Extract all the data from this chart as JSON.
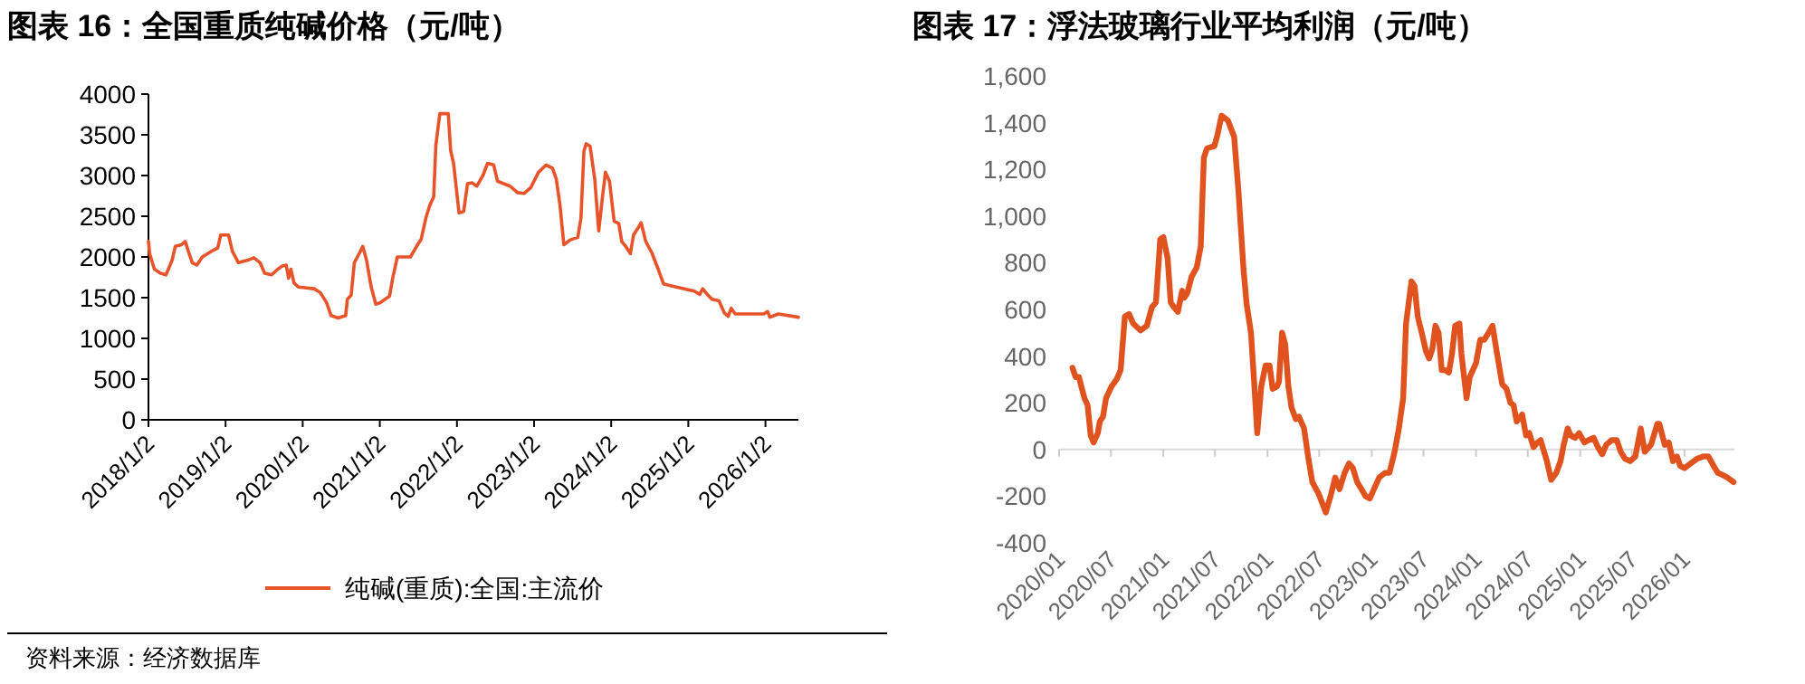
{
  "chart_data": [
    {
      "type": "line",
      "title": "图表 16：全国重质纯碱价格（元/吨）",
      "x": [
        "2018-01-02",
        "2018-01-08",
        "2018-01-30",
        "2018-02-28",
        "2018-03-26",
        "2018-04-24",
        "2018-05-09",
        "2018-06-07",
        "2018-06-25",
        "2018-07-10",
        "2018-07-28",
        "2018-08-19",
        "2018-09-14",
        "2018-10-27",
        "2018-11-26",
        "2018-12-10",
        "2019-01-16",
        "2019-02-03",
        "2019-03-04",
        "2019-04-17",
        "2019-05-16",
        "2019-06-14",
        "2019-07-06",
        "2019-08-08",
        "2019-09-06",
        "2019-09-28",
        "2019-10-16",
        "2019-10-27",
        "2019-11-07",
        "2019-11-22",
        "2019-12-14",
        "2020-02-25",
        "2020-03-26",
        "2020-04-24",
        "2020-05-16",
        "2020-06-18",
        "2020-07-24",
        "2020-08-01",
        "2020-08-19",
        "2020-09-03",
        "2020-09-28",
        "2020-10-13",
        "2020-10-31",
        "2020-11-22",
        "2020-12-14",
        "2021-01-05",
        "2021-02-17",
        "2021-03-04",
        "2021-03-26",
        "2021-05-27",
        "2021-06-25",
        "2021-07-17",
        "2021-08-08",
        "2021-08-26",
        "2021-09-14",
        "2021-09-24",
        "2021-10-13",
        "2021-11-22",
        "2021-12-03",
        "2021-12-17",
        "2022-01-12",
        "2022-02-03",
        "2022-02-21",
        "2022-03-15",
        "2022-04-06",
        "2022-05-05",
        "2022-05-27",
        "2022-06-25",
        "2022-07-13",
        "2022-09-10",
        "2022-10-16",
        "2022-11-15",
        "2022-12-17",
        "2023-01-23",
        "2023-02-28",
        "2023-03-30",
        "2023-04-17",
        "2023-05-05",
        "2023-05-23",
        "2023-06-22",
        "2023-07-28",
        "2023-08-12",
        "2023-08-26",
        "2023-09-06",
        "2023-09-24",
        "2023-10-16",
        "2023-11-04",
        "2023-11-22",
        "2023-12-06",
        "2023-12-25",
        "2024-01-16",
        "2024-02-07",
        "2024-02-21",
        "2024-03-11",
        "2024-04-02",
        "2024-04-17",
        "2024-05-12",
        "2024-05-23",
        "2024-06-14",
        "2024-07-13",
        "2024-08-12",
        "2024-09-06",
        "2024-10-05",
        "2025-01-30",
        "2025-02-25",
        "2025-03-11",
        "2025-04-02",
        "2025-04-24",
        "2025-05-27",
        "2025-06-22",
        "2025-07-10",
        "2025-07-24",
        "2025-08-12",
        "2025-09-14",
        "2025-12-25",
        "2026-01-12",
        "2026-01-23",
        "2026-03-04",
        "2026-06-07"
      ],
      "series": [
        {
          "name": "纯碱(重质):全国:主流价",
          "color": "#e8532a",
          "values": [
            2190,
            2040,
            1850,
            1800,
            1780,
            1960,
            2130,
            2150,
            2190,
            2070,
            1930,
            1900,
            2000,
            2070,
            2110,
            2270,
            2270,
            2070,
            1930,
            1960,
            1990,
            1930,
            1800,
            1780,
            1850,
            1890,
            1900,
            1740,
            1850,
            1680,
            1630,
            1610,
            1560,
            1440,
            1280,
            1250,
            1280,
            1480,
            1530,
            1930,
            2050,
            2130,
            1960,
            1630,
            1420,
            1440,
            1520,
            1740,
            2000,
            2000,
            2130,
            2220,
            2480,
            2630,
            2740,
            3370,
            3760,
            3760,
            3310,
            3150,
            2540,
            2560,
            2900,
            2910,
            2870,
            3000,
            3150,
            3130,
            2930,
            2870,
            2790,
            2780,
            2850,
            3040,
            3130,
            3090,
            2960,
            2630,
            2150,
            2210,
            2240,
            2480,
            3300,
            3390,
            3360,
            2960,
            2320,
            2740,
            3040,
            2930,
            2440,
            2410,
            2190,
            2130,
            2040,
            2270,
            2370,
            2420,
            2190,
            2050,
            1850,
            1670,
            1650,
            1580,
            1540,
            1610,
            1540,
            1480,
            1460,
            1310,
            1270,
            1370,
            1300,
            1300,
            1300,
            1330,
            1260,
            1300,
            1260
          ]
        }
      ],
      "xlim": [
        "2018-01-02",
        "2026-06-07"
      ],
      "xticks": [
        {
          "value": "2018-01-02",
          "label": "2018/1/2"
        },
        {
          "value": "2019-01-02",
          "label": "2019/1/2"
        },
        {
          "value": "2020-01-02",
          "label": "2020/1/2"
        },
        {
          "value": "2021-01-02",
          "label": "2021/1/2"
        },
        {
          "value": "2022-01-02",
          "label": "2022/1/2"
        },
        {
          "value": "2023-01-02",
          "label": "2023/1/2"
        },
        {
          "value": "2024-01-02",
          "label": "2024/1/2"
        },
        {
          "value": "2025-01-02",
          "label": "2025/1/2"
        },
        {
          "value": "2026-01-02",
          "label": "2026/1/2"
        }
      ],
      "ylim": [
        0,
        4000
      ],
      "yticks": [
        0,
        500,
        1000,
        1500,
        2000,
        2500,
        3000,
        3500,
        4000
      ],
      "legend": "bottom",
      "grid": false,
      "annotations": [
        "资料来源：经济数据库"
      ]
    },
    {
      "type": "line",
      "title": "图表 17：浮法玻璃行业平均利润（元/吨）",
      "x": [
        "2020-02-17",
        "2020-02-28",
        "2020-03-11",
        "2020-03-19",
        "2020-03-30",
        "2020-04-10",
        "2020-04-21",
        "2020-05-01",
        "2020-05-16",
        "2020-05-23",
        "2020-06-03",
        "2020-06-14",
        "2020-07-03",
        "2020-07-21",
        "2020-08-04",
        "2020-08-19",
        "2020-09-03",
        "2020-09-17",
        "2020-10-13",
        "2020-11-04",
        "2020-11-22",
        "2020-12-06",
        "2020-12-21",
        "2021-01-01",
        "2021-01-16",
        "2021-01-27",
        "2021-02-07",
        "2021-02-21",
        "2021-03-08",
        "2021-03-15",
        "2021-03-26",
        "2021-04-10",
        "2021-04-28",
        "2021-05-12",
        "2021-05-23",
        "2021-06-03",
        "2021-06-29",
        "2021-07-10",
        "2021-07-24",
        "2021-08-15",
        "2021-09-06",
        "2021-09-21",
        "2021-10-09",
        "2021-10-20",
        "2021-11-04",
        "2021-11-15",
        "2021-11-26",
        "2021-12-10",
        "2021-12-25",
        "2022-01-08",
        "2022-01-19",
        "2022-02-03",
        "2022-02-10",
        "2022-02-21",
        "2022-03-04",
        "2022-03-15",
        "2022-03-26",
        "2022-04-10",
        "2022-04-21",
        "2022-05-09",
        "2022-05-23",
        "2022-06-07",
        "2022-06-29",
        "2022-07-24",
        "2022-08-12",
        "2022-08-26",
        "2022-09-10",
        "2022-09-28",
        "2022-10-13",
        "2022-10-27",
        "2022-11-11",
        "2022-11-26",
        "2022-12-10",
        "2022-12-25",
        "2023-01-05",
        "2023-01-27",
        "2023-02-17",
        "2023-03-04",
        "2023-03-22",
        "2023-04-06",
        "2023-04-21",
        "2023-05-01",
        "2023-05-20",
        "2023-05-31",
        "2023-06-11",
        "2023-06-25",
        "2023-07-10",
        "2023-07-21",
        "2023-08-01",
        "2023-08-12",
        "2023-08-23",
        "2023-09-03",
        "2023-09-14",
        "2023-09-28",
        "2023-10-09",
        "2023-10-20",
        "2023-11-04",
        "2023-11-11",
        "2023-11-29",
        "2023-12-10",
        "2024-01-01",
        "2024-01-16",
        "2024-01-30",
        "2024-02-14",
        "2024-02-28",
        "2024-03-15",
        "2024-04-02",
        "2024-04-17",
        "2024-05-01",
        "2024-05-12",
        "2024-05-23",
        "2024-06-11",
        "2024-06-25",
        "2024-07-06",
        "2024-07-21",
        "2024-08-04",
        "2024-08-15",
        "2024-09-06",
        "2024-09-21",
        "2024-10-09",
        "2024-10-24",
        "2024-11-04",
        "2024-11-18",
        "2024-11-29",
        "2024-12-14",
        "2024-12-28",
        "2025-01-16",
        "2025-01-30",
        "2025-02-17",
        "2025-03-04",
        "2025-03-19",
        "2025-04-02",
        "2025-04-21",
        "2025-05-09",
        "2025-05-23",
        "2025-06-07",
        "2025-06-25",
        "2025-07-13",
        "2025-08-01",
        "2025-08-15",
        "2025-09-06",
        "2025-09-28",
        "2025-10-05",
        "2025-10-24",
        "2025-11-07",
        "2025-11-22",
        "2025-12-06",
        "2025-12-17",
        "2026-01-01",
        "2026-01-23",
        "2026-02-14",
        "2026-03-08",
        "2026-03-26",
        "2026-04-13",
        "2026-04-28",
        "2026-05-16",
        "2026-05-31",
        "2026-06-22"
      ],
      "series": [
        {
          "color": "#e0531f",
          "values": [
            350,
            310,
            310,
            270,
            220,
            190,
            60,
            30,
            70,
            120,
            140,
            220,
            270,
            300,
            340,
            570,
            580,
            540,
            510,
            530,
            610,
            630,
            900,
            910,
            820,
            630,
            610,
            590,
            680,
            650,
            670,
            740,
            780,
            870,
            1250,
            1290,
            1300,
            1350,
            1430,
            1410,
            1340,
            1110,
            770,
            620,
            500,
            290,
            70,
            270,
            360,
            360,
            260,
            270,
            290,
            500,
            450,
            270,
            180,
            130,
            140,
            90,
            -30,
            -140,
            -190,
            -270,
            -190,
            -120,
            -170,
            -100,
            -60,
            -80,
            -140,
            -170,
            -200,
            -210,
            -180,
            -120,
            -100,
            -100,
            -10,
            90,
            220,
            540,
            720,
            700,
            570,
            500,
            420,
            390,
            430,
            530,
            500,
            340,
            340,
            330,
            410,
            530,
            540,
            410,
            220,
            310,
            370,
            470,
            470,
            500,
            530,
            410,
            280,
            260,
            200,
            190,
            120,
            150,
            60,
            70,
            10,
            30,
            40,
            -50,
            -130,
            -100,
            -50,
            20,
            90,
            60,
            50,
            70,
            30,
            40,
            50,
            10,
            -20,
            20,
            40,
            40,
            -10,
            -40,
            -50,
            -30,
            90,
            -10,
            20,
            110,
            110,
            20,
            30,
            -50,
            -30,
            -70,
            -80,
            -60,
            -40,
            -30,
            -30,
            -70,
            -100,
            -110,
            -120,
            -140
          ]
        }
      ],
      "xlim": [
        "2020-01",
        "2026-06-25"
      ],
      "xticks": [
        {
          "value": "2020-01",
          "label": "2020/01"
        },
        {
          "value": "2020-07",
          "label": "2020/07"
        },
        {
          "value": "2021-01",
          "label": "2021/01"
        },
        {
          "value": "2021-07",
          "label": "2021/07"
        },
        {
          "value": "2022-01",
          "label": "2022/01"
        },
        {
          "value": "2022-07",
          "label": "2022/07"
        },
        {
          "value": "2023-01",
          "label": "2023/01"
        },
        {
          "value": "2023-07",
          "label": "2023/07"
        },
        {
          "value": "2024-01",
          "label": "2024/01"
        },
        {
          "value": "2024-07",
          "label": "2024/07"
        },
        {
          "value": "2025-01",
          "label": "2025/01"
        },
        {
          "value": "2025-07",
          "label": "2025/07"
        },
        {
          "value": "2026-01",
          "label": "2026/01"
        }
      ],
      "ylim": [
        -400,
        1600
      ],
      "yticks": [
        -400,
        -200,
        0,
        200,
        400,
        600,
        800,
        {
          "value": 1000,
          "label": "1,000"
        },
        {
          "value": 1200,
          "label": "1,200"
        },
        {
          "value": 1400,
          "label": "1,400"
        },
        {
          "value": 1600,
          "label": "1,600"
        }
      ],
      "legend": false,
      "grid": false,
      "ref_lines": [
        {
          "axis": "y",
          "value": 0,
          "color": "#d9d9d9"
        }
      ]
    }
  ]
}
